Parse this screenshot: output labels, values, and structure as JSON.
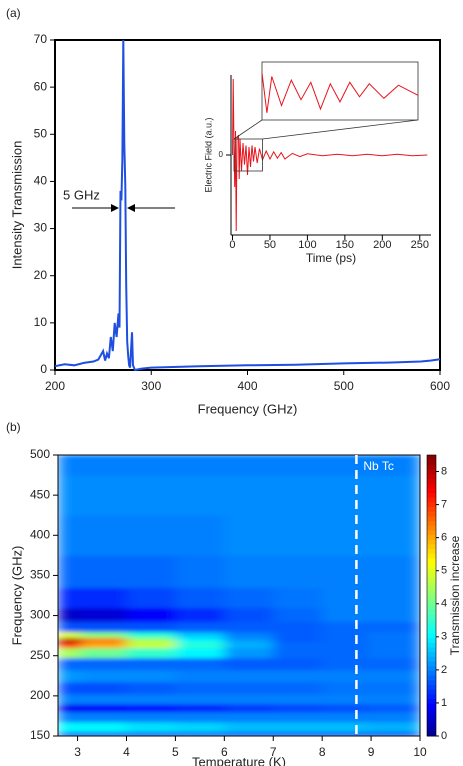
{
  "chart_data": [
    {
      "type": "line",
      "panel_label": "(a)",
      "xlabel": "Frequency (GHz)",
      "ylabel": "Intensity Transmission",
      "annotation": "5 GHz",
      "xlim": [
        200,
        600
      ],
      "xticks": [
        200,
        300,
        400,
        500,
        600
      ],
      "ylim": [
        0,
        70
      ],
      "yticks": [
        0,
        10,
        20,
        30,
        40,
        50,
        60,
        70
      ],
      "x": [
        200,
        210,
        220,
        230,
        240,
        245,
        250,
        252,
        254,
        256,
        258,
        260,
        262,
        264,
        266,
        267,
        268,
        269,
        270,
        271,
        272,
        273,
        274,
        275,
        276,
        277,
        278,
        280,
        281,
        283,
        290,
        300,
        350,
        400,
        450,
        500,
        550,
        580,
        590,
        600
      ],
      "series": [
        {
          "color": "#1f4fe0",
          "values": [
            0.8,
            1.2,
            1,
            1.5,
            1.8,
            2.2,
            4,
            2,
            3.5,
            2.5,
            7,
            4,
            10,
            7,
            12,
            9,
            38,
            36,
            45,
            70,
            48,
            39,
            18,
            6,
            3,
            1,
            0.5,
            8,
            1,
            0,
            0.3,
            0.5,
            0.8,
            1,
            1.1,
            1.4,
            1.6,
            1.8,
            2,
            2.3
          ]
        }
      ]
    },
    {
      "type": "line",
      "inset": true,
      "xlabel": "Time (ps)",
      "ylabel": "Electric Field (a.u.)",
      "xlim": [
        -2,
        265
      ],
      "xticks": [
        0,
        50,
        100,
        150,
        200,
        250
      ],
      "ylim": [
        -1,
        1
      ],
      "yticks": [
        0
      ],
      "x": [
        0,
        1,
        2,
        3,
        4,
        5,
        6,
        8,
        9,
        10,
        12,
        14,
        16,
        18,
        20,
        22,
        24,
        26,
        28,
        30,
        33,
        36,
        40,
        45,
        50,
        55,
        60,
        65,
        70,
        80,
        90,
        100,
        120,
        140,
        160,
        180,
        200,
        220,
        240,
        260
      ],
      "series": [
        {
          "color": "#e8141c",
          "values": [
            0,
            0.95,
            0.1,
            -0.4,
            0.3,
            -0.95,
            0.2,
            0.25,
            -0.3,
            0.2,
            -0.2,
            0.15,
            -0.12,
            0.12,
            -0.25,
            0.1,
            -0.15,
            0.12,
            -0.08,
            0.1,
            -0.1,
            0.08,
            -0.06,
            0.05,
            -0.05,
            0.04,
            -0.04,
            0.03,
            -0.05,
            0.02,
            -0.02,
            0.015,
            -0.01,
            0.01,
            -0.01,
            0.01,
            -0.01,
            0.01,
            -0.01,
            0
          ]
        }
      ]
    },
    {
      "type": "heatmap",
      "panel_label": "(b)",
      "xlabel": "Temperature (K)",
      "ylabel": "Frequency (GHz)",
      "xlim": [
        2.6,
        10
      ],
      "xticks": [
        3,
        4,
        5,
        6,
        7,
        8,
        9,
        10
      ],
      "ylim": [
        150,
        500
      ],
      "yticks": [
        150,
        200,
        250,
        300,
        350,
        400,
        450,
        500
      ],
      "x": [
        2.6,
        3.5,
        4.5,
        5.5,
        6.5,
        7.5,
        8.5,
        9.3,
        10
      ],
      "y": [
        150,
        160,
        175,
        185,
        195,
        210,
        225,
        240,
        255,
        265,
        270,
        275,
        285,
        300,
        320,
        350,
        400,
        450,
        500
      ],
      "z": [
        [
          1.5,
          1.5,
          1.5,
          1.6,
          1.6,
          1.6,
          1.6,
          1.6,
          1.6
        ],
        [
          3,
          3,
          2.8,
          2.7,
          2.5,
          2.5,
          2.5,
          2.4,
          2.4
        ],
        [
          2,
          2,
          2,
          2,
          2,
          2,
          2,
          2,
          2
        ],
        [
          0.8,
          0.9,
          1,
          1.2,
          1.4,
          1.5,
          1.6,
          1.7,
          1.7
        ],
        [
          2,
          2,
          2,
          2,
          2,
          2,
          2,
          2,
          2
        ],
        [
          1.6,
          1.6,
          1.7,
          1.8,
          1.8,
          1.8,
          1.9,
          1.9,
          1.9
        ],
        [
          2.2,
          2.1,
          2.1,
          2,
          2,
          2,
          2,
          2,
          2
        ],
        [
          1.8,
          1.8,
          1.8,
          1.8,
          1.7,
          1.7,
          1.8,
          1.8,
          1.8
        ],
        [
          4.5,
          4,
          3.5,
          3,
          2.2,
          1.8,
          1.8,
          1.9,
          1.9
        ],
        [
          7,
          6,
          4.8,
          3.4,
          2.4,
          1.8,
          1.8,
          1.9,
          1.9
        ],
        [
          8.3,
          6.5,
          4.5,
          3,
          2.2,
          1.7,
          1.8,
          1.9,
          1.9
        ],
        [
          5,
          4.2,
          3.4,
          2.6,
          2,
          1.7,
          1.8,
          1.9,
          1.9
        ],
        [
          1.6,
          1.6,
          1.6,
          1.7,
          1.7,
          1.7,
          1.8,
          1.8,
          1.8
        ],
        [
          0.5,
          0.6,
          0.9,
          1.3,
          1.6,
          1.8,
          2,
          2,
          2
        ],
        [
          1.3,
          1.3,
          1.5,
          1.7,
          1.8,
          1.9,
          2,
          2,
          2
        ],
        [
          1.8,
          1.8,
          1.8,
          1.9,
          2,
          2,
          2,
          2,
          2
        ],
        [
          2,
          2,
          2,
          2,
          2.1,
          2.1,
          2.1,
          2.1,
          2.1
        ],
        [
          2.1,
          2.1,
          2.1,
          2.1,
          2.1,
          2.1,
          2.1,
          2.1,
          2.1
        ],
        [
          2,
          2,
          2,
          2,
          2,
          2,
          2,
          2,
          2
        ]
      ],
      "colorbar": {
        "label": "Transmission increase",
        "lim": [
          0,
          8.5
        ],
        "ticks": [
          0,
          1,
          2,
          3,
          4,
          5,
          6,
          7,
          8
        ]
      },
      "marker_line": {
        "x": 8.7,
        "label": "Nb Tc",
        "color": "#ffffff"
      }
    }
  ]
}
